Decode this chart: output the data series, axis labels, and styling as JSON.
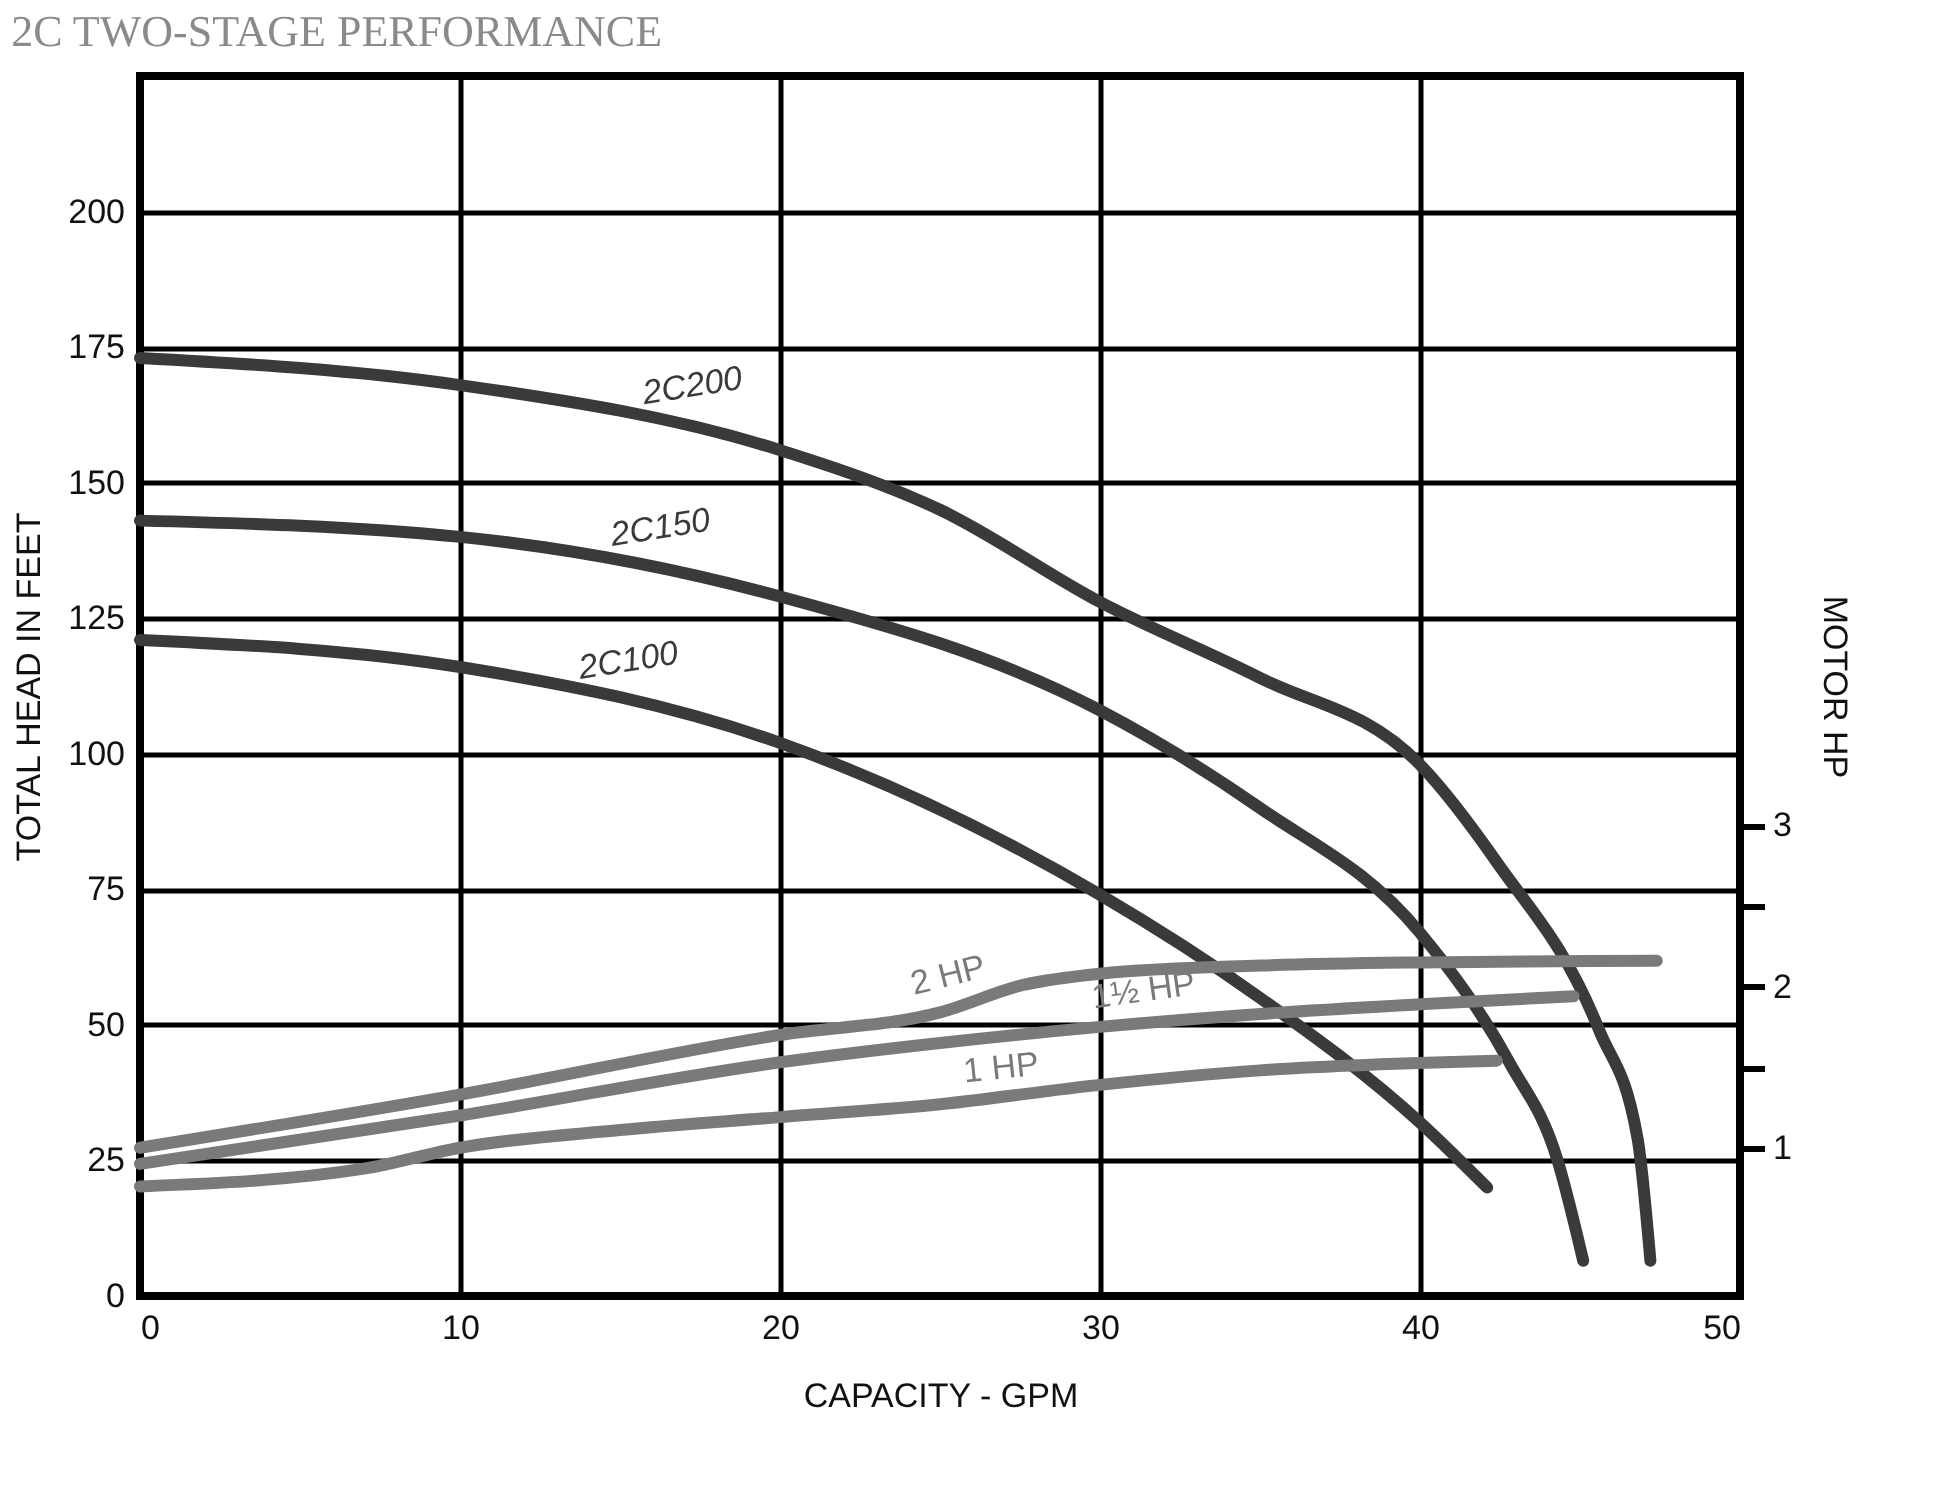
{
  "chart_data": {
    "type": "line",
    "title": "2C TWO-STAGE PERFORMANCE",
    "xlabel": "CAPACITY - GPM",
    "ylabel": "TOTAL HEAD IN FEET",
    "y2label": "MOTOR HP",
    "xlim": [
      0,
      50
    ],
    "xticks": [
      0,
      10,
      20,
      30,
      40,
      50
    ],
    "ylim": [
      0,
      225
    ],
    "yticks": [
      0,
      25,
      50,
      75,
      100,
      125,
      150,
      175,
      200
    ],
    "y2lim": [
      0.08,
      7.65
    ],
    "y2ticks": [
      1,
      {
        "value": 1.5,
        "label": null
      },
      2,
      {
        "value": 2.5,
        "label": null
      },
      3
    ],
    "grid": true,
    "legend": false,
    "line_style": "solid",
    "marker": "none",
    "series": [
      {
        "name": "2C200",
        "color": "#3a3a3a",
        "x": [
          0,
          10,
          20,
          25,
          30,
          35,
          40,
          42.4,
          45.6,
          46.8,
          47.2
        ],
        "values": [
          173,
          168,
          156,
          145,
          128,
          114,
          98,
          80,
          49,
          29,
          6.5
        ]
      },
      {
        "name": "2C150",
        "color": "#3a3a3a",
        "x": [
          0,
          10,
          20,
          30,
          35,
          40,
          42.8,
          44.3,
          45.1
        ],
        "values": [
          143,
          140,
          129,
          108,
          90,
          67,
          43,
          25,
          6.5
        ]
      },
      {
        "name": "2C100",
        "color": "#3a3a3a",
        "x": [
          0,
          10,
          20,
          30,
          35,
          40,
          42.1
        ],
        "values": [
          121,
          116,
          102,
          74,
          55,
          32,
          20
        ]
      },
      {
        "name": "2 HP",
        "color": "#7a7a7a",
        "axis": "y2",
        "x": [
          0,
          10,
          20,
          25,
          27.6,
          30,
          35,
          40,
          47.4
        ],
        "values": [
          1.0,
          1.33,
          1.7,
          1.84,
          2.01,
          2.08,
          2.13,
          2.15,
          2.16
        ]
      },
      {
        "name": "1½ HP",
        "color": "#7a7a7a",
        "axis": "y2",
        "x": [
          0,
          10,
          20,
          25,
          30,
          35,
          40,
          44.8
        ],
        "values": [
          0.9,
          1.2,
          1.53,
          1.65,
          1.75,
          1.83,
          1.89,
          1.94
        ]
      },
      {
        "name": "1 HP",
        "color": "#7a7a7a",
        "axis": "y2",
        "x": [
          0,
          7,
          10,
          15,
          20,
          25,
          30,
          35,
          42.4
        ],
        "values": [
          0.76,
          0.87,
          1.0,
          1.11,
          1.19,
          1.27,
          1.39,
          1.48,
          1.54
        ]
      }
    ]
  }
}
